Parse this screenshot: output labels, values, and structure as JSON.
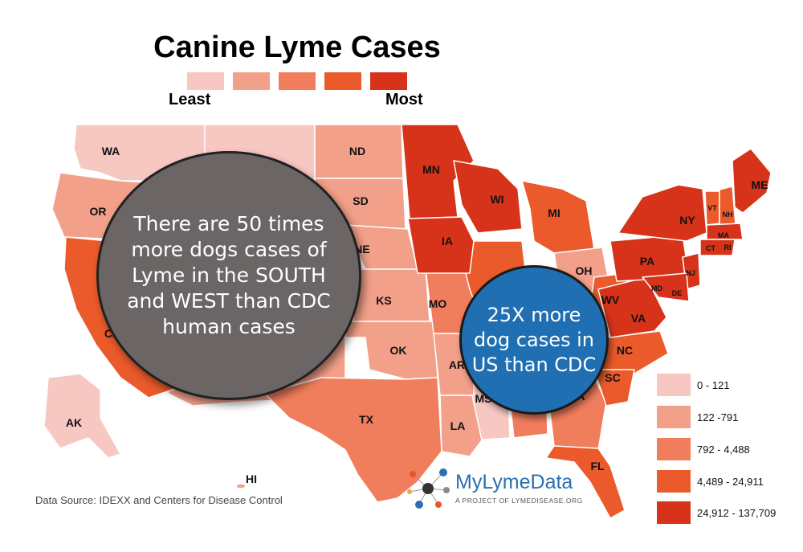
{
  "title": "Canine Lyme Cases",
  "scale": {
    "least": "Least",
    "most": "Most",
    "colors": [
      "#f7c7c2",
      "#f3a08a",
      "#f07d5c",
      "#ea5a2b",
      "#d6331a"
    ]
  },
  "states": {
    "WA": "WA",
    "OR": "OR",
    "CA": "CA",
    "ND": "ND",
    "SD": "SD",
    "NE": "NE",
    "KS": "KS",
    "OK": "OK",
    "TX": "TX",
    "MN": "MN",
    "IA": "IA",
    "MO": "MO",
    "AR": "AR",
    "LA": "LA",
    "MS": "MS",
    "WI": "WI",
    "MI": "MI",
    "OH": "OH",
    "WV": "WV",
    "VA": "VA",
    "NC": "NC",
    "SC": "SC",
    "GA": "GA",
    "FL": "FL",
    "PA": "PA",
    "NY": "NY",
    "ME": "ME",
    "VT": "VT",
    "NH": "NH",
    "MA": "MA",
    "CT": "CT",
    "RI": "RI",
    "NJ": "NJ",
    "MD": "MD",
    "DE": "DE",
    "AK": "AK",
    "HI": "HI"
  },
  "callouts": {
    "south_west": "There are 50 times more dogs cases of Lyme in the SOUTH and WEST than CDC human cases",
    "us": "25X more dog cases in US than CDC"
  },
  "legend": [
    {
      "label": "0 - 121",
      "color": "#f7c7c2"
    },
    {
      "label": "122 -791",
      "color": "#f3a08a"
    },
    {
      "label": "792 - 4,488",
      "color": "#f07d5c"
    },
    {
      "label": "4,489 - 24,911",
      "color": "#ea5a2b"
    },
    {
      "label": "24,912 - 137,709",
      "color": "#d6331a"
    }
  ],
  "source": "Data Source: IDEXX and Centers for Disease Control",
  "logo": {
    "name": "MyLymeData",
    "tagline": "A PROJECT OF LYMEDISEASE.ORG"
  }
}
